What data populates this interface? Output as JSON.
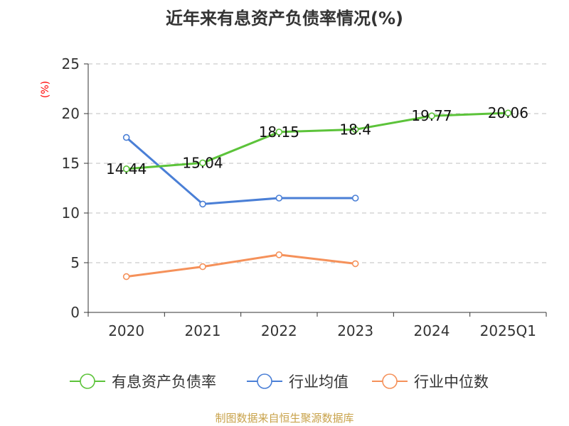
{
  "title": "近年来有息资产负债率情况(%)",
  "source": "制图数据来自恒生聚源数据库",
  "chart_data": {
    "type": "line",
    "title": "近年来有息资产负债率情况(%)",
    "ylabel": "(%)",
    "xlabel": "",
    "categories": [
      "2020",
      "2021",
      "2022",
      "2023",
      "2024",
      "2025Q1"
    ],
    "ylim": [
      0,
      25
    ],
    "yticks": [
      0,
      5,
      10,
      15,
      20,
      25
    ],
    "grid": true,
    "legend": "bottom",
    "series": [
      {
        "name": "有息资产负债率",
        "color": "#5cc33a",
        "values": [
          14.44,
          15.04,
          18.15,
          18.4,
          19.77,
          20.06
        ],
        "labels": [
          "14.44",
          "15.04",
          "18.15",
          "18.4",
          "19.77",
          "20.06"
        ]
      },
      {
        "name": "行业均值",
        "color": "#4a7fd6",
        "values": [
          17.6,
          10.9,
          11.5,
          11.5,
          null,
          null
        ]
      },
      {
        "name": "行业中位数",
        "color": "#f5915a",
        "values": [
          3.6,
          4.6,
          5.8,
          4.9,
          null,
          null
        ]
      }
    ]
  }
}
